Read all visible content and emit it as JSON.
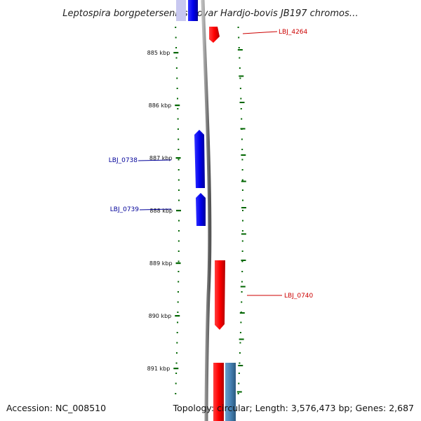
{
  "title": "Leptospira borgpetersenii serovar Hardjo-bovis JB197 chromos…",
  "footer": {
    "accession": "Accession: NC_008510",
    "summary": "Topology: circular; Length: 3,576,473 bp; Genes: 2,687"
  },
  "ruler": {
    "ticks": [
      "885 kbp",
      "886 kbp",
      "887 kbp",
      "888 kbp",
      "889 kbp",
      "890 kbp",
      "891 kbp"
    ]
  },
  "genes": [
    {
      "name": "LBJ_4264",
      "strand": "forward",
      "color": "#ff0000"
    },
    {
      "name": "LBJ_0738",
      "strand": "reverse",
      "color": "#0000ee"
    },
    {
      "name": "LBJ_0739",
      "strand": "reverse",
      "color": "#0000ee"
    },
    {
      "name": "LBJ_0740",
      "strand": "forward",
      "color": "#ff0000"
    }
  ],
  "colors": {
    "forward_gene": "#ff0000",
    "reverse_gene": "#0000ee",
    "forward_label": "#cc0000",
    "reverse_label": "#000099",
    "ticks": "#006600",
    "backbone": "#888888",
    "steelblue_feature": "#4682b4"
  }
}
